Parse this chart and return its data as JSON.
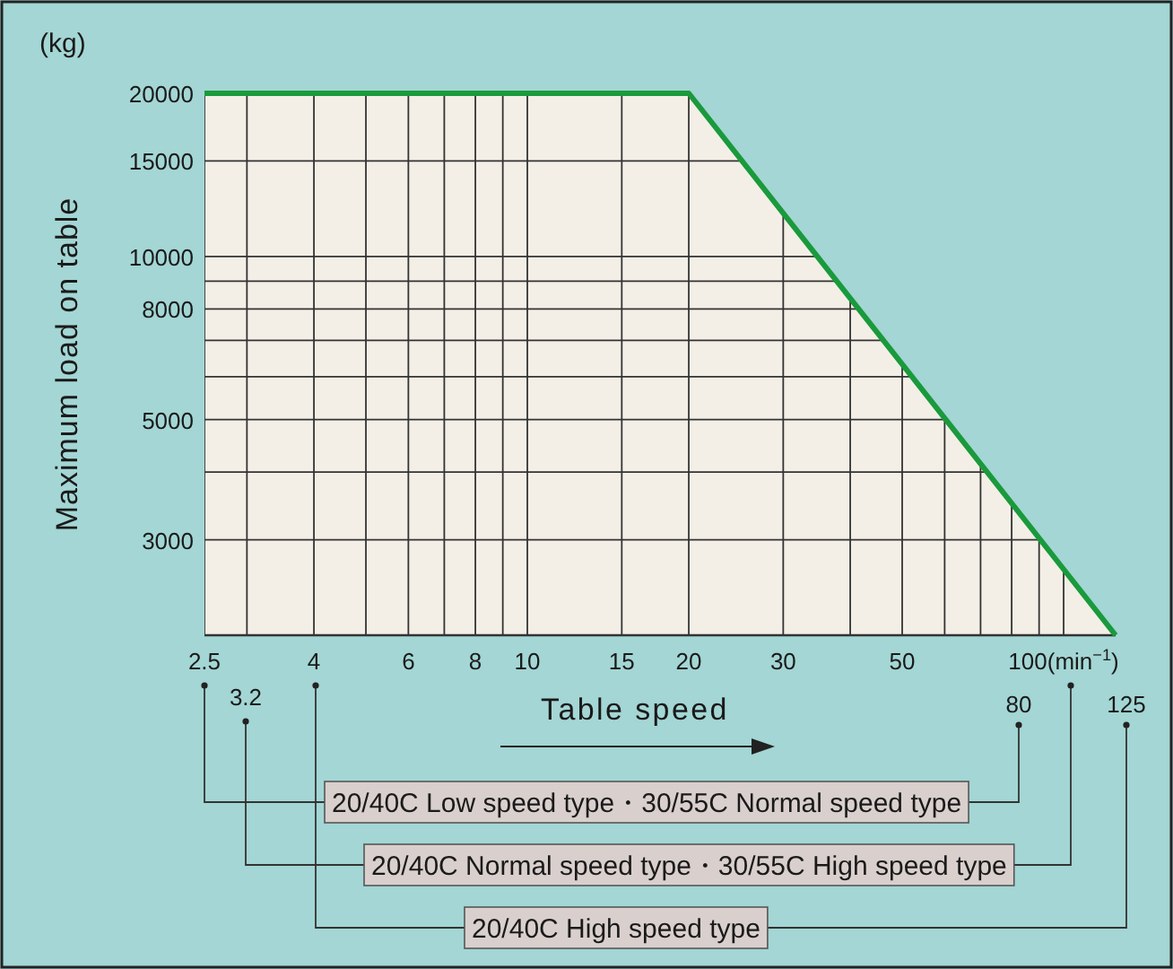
{
  "chart_data": {
    "type": "area",
    "xlabel": "Table speed",
    "ylabel": "Maximum load on table",
    "log": "xy",
    "series": [
      {
        "color": "#1a9a3c",
        "x": [
          2.5,
          20,
          125
        ],
        "values": [
          20000,
          20000,
          2000
        ]
      }
    ],
    "xlim": [
      2.5,
      125
    ],
    "ylim": [
      2000,
      20000
    ],
    "xticks": [
      2.5,
      {
        "value": 3,
        "label": null
      },
      4,
      {
        "value": 5,
        "label": null
      },
      6,
      {
        "value": 7,
        "label": null
      },
      8,
      {
        "value": 9,
        "label": null
      },
      10,
      15,
      20,
      30,
      {
        "value": 40,
        "label": null
      },
      50,
      {
        "value": 60,
        "label": null
      },
      {
        "value": 70,
        "label": null
      },
      {
        "value": 80,
        "label": null
      },
      {
        "value": 90,
        "label": null
      },
      {
        "value": 100,
        "label": "100(min$^{−1}$)"
      }
    ],
    "yticks": [
      3000,
      {
        "value": 4000,
        "label": null
      },
      5000,
      {
        "value": 6000,
        "label": null
      },
      {
        "value": 7000,
        "label": null
      },
      8000,
      {
        "value": 9000,
        "label": null
      },
      10000,
      15000,
      20000
    ],
    "grid": true,
    "annotations": [
      "(kg)",
      "3.2",
      "80",
      "125",
      "20/40C Low speed type・30/55C Normal speed type",
      "20/40C Normal speed type・30/55C High speed type",
      "20/40C High speed type"
    ]
  }
}
